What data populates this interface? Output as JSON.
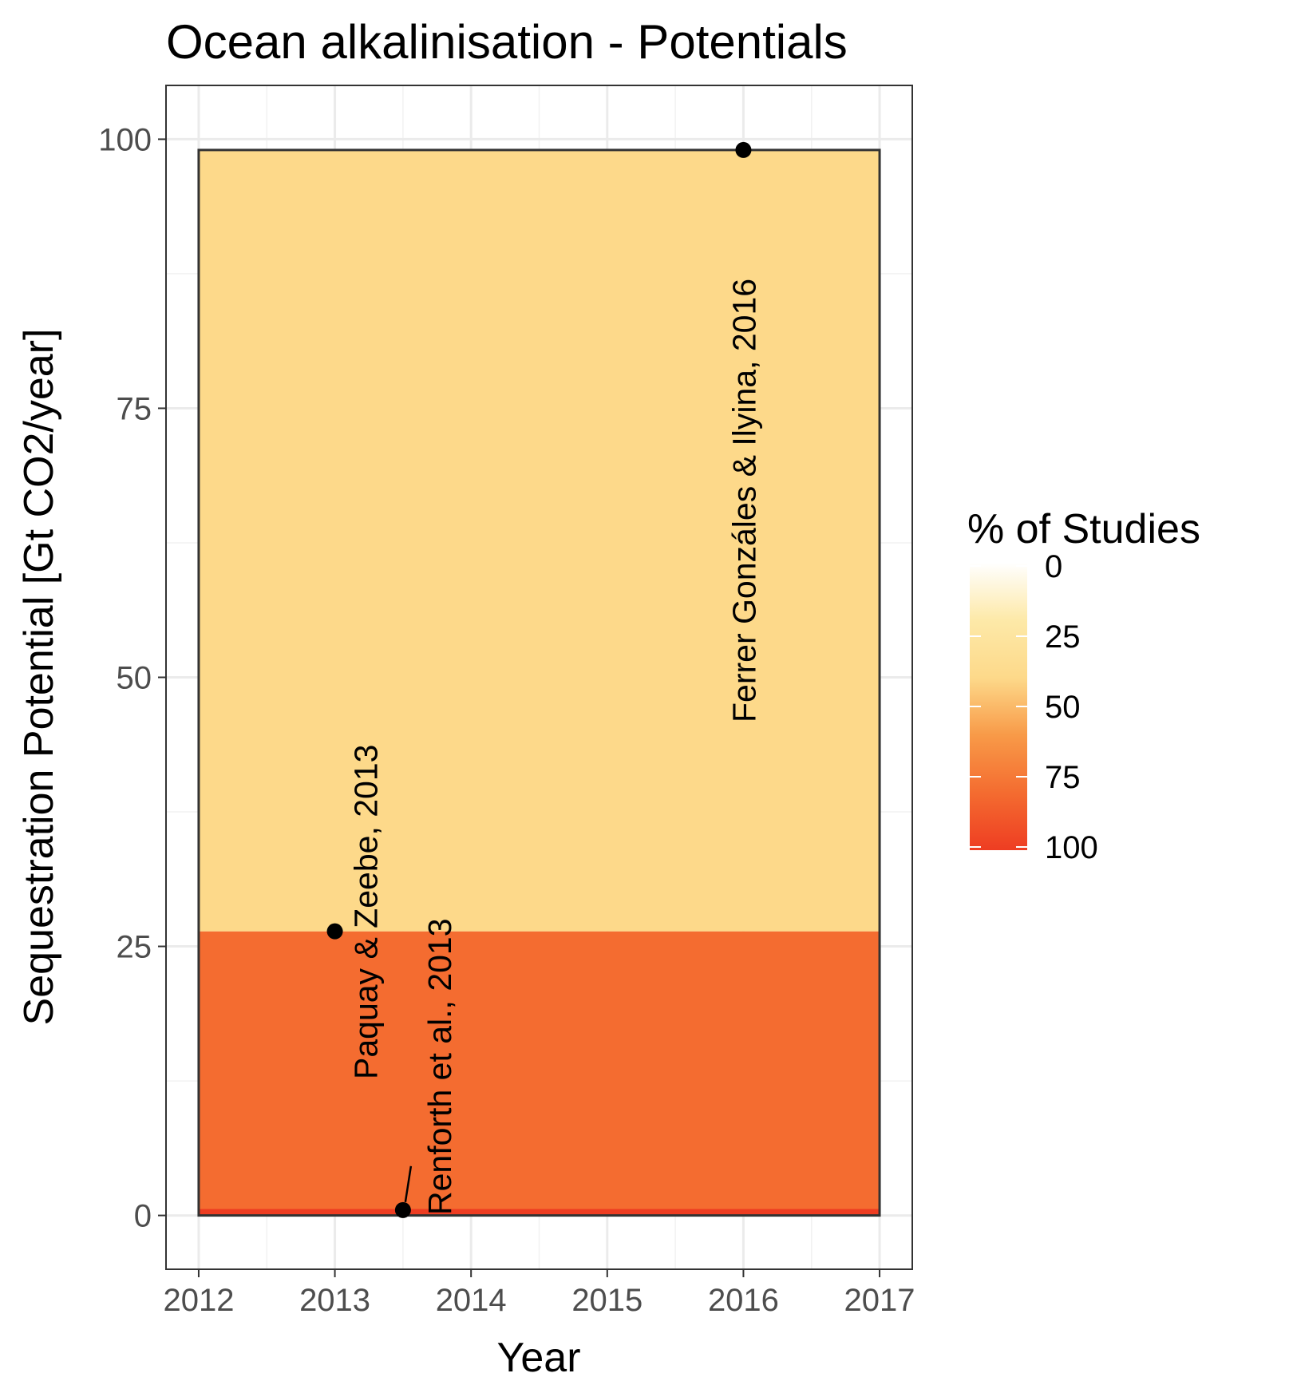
{
  "chart_data": {
    "type": "area",
    "title": "Ocean alkalinisation - Potentials",
    "xlabel": "Year",
    "ylabel": "Sequestration Potential [Gt CO2/year]",
    "xlim": [
      2011.76,
      2017.24
    ],
    "ylim": [
      -5,
      105
    ],
    "x_ticks": [
      2012,
      2013,
      2014,
      2015,
      2016,
      2017
    ],
    "y_ticks": [
      0,
      25,
      50,
      75,
      100
    ],
    "grid": true,
    "bands": [
      {
        "x_start": 2012,
        "x_end": 2017,
        "y_min": 0,
        "y_max": 0.6,
        "percent_of_studies": 100,
        "color": "#ee3d22"
      },
      {
        "x_start": 2012,
        "x_end": 2017,
        "y_min": 0.6,
        "y_max": 26.4,
        "percent_of_studies": 66.7,
        "color": "#f46c30"
      },
      {
        "x_start": 2012,
        "x_end": 2017,
        "y_min": 26.4,
        "y_max": 99,
        "percent_of_studies": 33.3,
        "color": "#fdd98a"
      }
    ],
    "points": [
      {
        "x": 2013,
        "y": 26.4,
        "label": "Paquay & Zeebe, 2013"
      },
      {
        "x": 2013.5,
        "y": 0.5,
        "label": "Renforth et al., 2013"
      },
      {
        "x": 2016,
        "y": 99,
        "label": "Ferrer Gonzáles & Ilyina, 2016"
      }
    ],
    "legend": {
      "title": "% of Studies",
      "placement": "right",
      "labels": [
        "0",
        "25",
        "50",
        "75",
        "100"
      ],
      "values": [
        0,
        25,
        50,
        75,
        100
      ],
      "colors": [
        "#ffffff",
        "#fde9a8",
        "#fdd98a",
        "#f89a48",
        "#f46c30",
        "#ee3d22"
      ]
    }
  }
}
